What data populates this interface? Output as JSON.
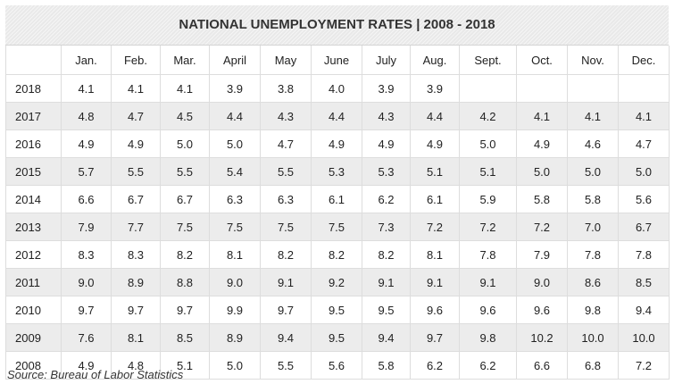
{
  "chart_data": {
    "type": "table",
    "title": "NATIONAL UNEMPLOYMENT RATES | 2008 - 2018",
    "columns": [
      "",
      "Jan.",
      "Feb.",
      "Mar.",
      "April",
      "May",
      "June",
      "July",
      "Aug.",
      "Sept.",
      "Oct.",
      "Nov.",
      "Dec."
    ],
    "rows": [
      {
        "year": "2018",
        "values": [
          "4.1",
          "4.1",
          "4.1",
          "3.9",
          "3.8",
          "4.0",
          "3.9",
          "3.9",
          "",
          "",
          "",
          ""
        ]
      },
      {
        "year": "2017",
        "values": [
          "4.8",
          "4.7",
          "4.5",
          "4.4",
          "4.3",
          "4.4",
          "4.3",
          "4.4",
          "4.2",
          "4.1",
          "4.1",
          "4.1"
        ]
      },
      {
        "year": "2016",
        "values": [
          "4.9",
          "4.9",
          "5.0",
          "5.0",
          "4.7",
          "4.9",
          "4.9",
          "4.9",
          "5.0",
          "4.9",
          "4.6",
          "4.7"
        ]
      },
      {
        "year": "2015",
        "values": [
          "5.7",
          "5.5",
          "5.5",
          "5.4",
          "5.5",
          "5.3",
          "5.3",
          "5.1",
          "5.1",
          "5.0",
          "5.0",
          "5.0"
        ]
      },
      {
        "year": "2014",
        "values": [
          "6.6",
          "6.7",
          "6.7",
          "6.3",
          "6.3",
          "6.1",
          "6.2",
          "6.1",
          "5.9",
          "5.8",
          "5.8",
          "5.6"
        ]
      },
      {
        "year": "2013",
        "values": [
          "7.9",
          "7.7",
          "7.5",
          "7.5",
          "7.5",
          "7.5",
          "7.3",
          "7.2",
          "7.2",
          "7.2",
          "7.0",
          "6.7"
        ]
      },
      {
        "year": "2012",
        "values": [
          "8.3",
          "8.3",
          "8.2",
          "8.1",
          "8.2",
          "8.2",
          "8.2",
          "8.1",
          "7.8",
          "7.9",
          "7.8",
          "7.8"
        ]
      },
      {
        "year": "2011",
        "values": [
          "9.0",
          "8.9",
          "8.8",
          "9.0",
          "9.1",
          "9.2",
          "9.1",
          "9.1",
          "9.1",
          "9.0",
          "8.6",
          "8.5"
        ]
      },
      {
        "year": "2010",
        "values": [
          "9.7",
          "9.7",
          "9.7",
          "9.9",
          "9.7",
          "9.5",
          "9.5",
          "9.6",
          "9.6",
          "9.6",
          "9.8",
          "9.4"
        ]
      },
      {
        "year": "2009",
        "values": [
          "7.6",
          "8.1",
          "8.5",
          "8.9",
          "9.4",
          "9.5",
          "9.4",
          "9.7",
          "9.8",
          "10.2",
          "10.0",
          "10.0"
        ]
      },
      {
        "year": "2008",
        "values": [
          "4.9",
          "4.8",
          "5.1",
          "5.0",
          "5.5",
          "5.6",
          "5.8",
          "6.2",
          "6.2",
          "6.6",
          "6.8",
          "7.2"
        ]
      }
    ],
    "source": "Source: Bureau of Labor Statistics"
  },
  "colors": {
    "header_bg": "#e9e9e9",
    "stripe_bg": "#ececec",
    "border": "#dddddd",
    "text": "#222222"
  }
}
